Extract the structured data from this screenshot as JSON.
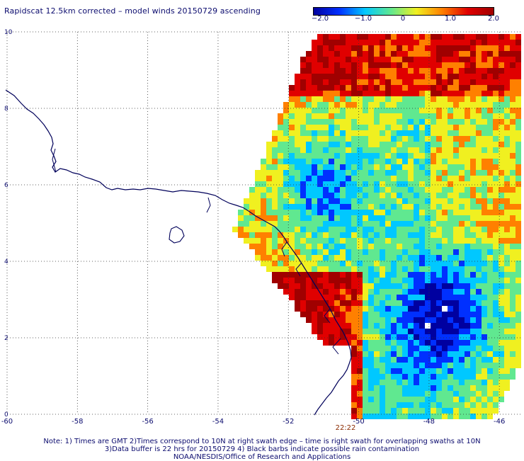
{
  "title": "Rapidscat 12.5km corrected – model winds 20150729 ascending",
  "colorbar": {
    "labels": [
      "−2.0",
      "−1.0",
      "0",
      "1.0",
      "2.0"
    ],
    "values": [
      -2.0,
      -1.0,
      0.0,
      1.0,
      2.0
    ],
    "stops": [
      "#0000a0",
      "#0030ff",
      "#00c8ff",
      "#60e890",
      "#f0f020",
      "#ff8000",
      "#e00000",
      "#a00000"
    ]
  },
  "map": {
    "lon_range": [
      -60,
      -45.4
    ],
    "lat_range": [
      0,
      10
    ],
    "x_ticks": [
      "-60",
      "-58",
      "-56",
      "-54",
      "-52",
      "-50",
      "-48",
      "-46"
    ],
    "x_tick_values": [
      -60,
      -58,
      -56,
      -54,
      -52,
      -50,
      -48,
      -46
    ],
    "y_ticks": [
      "0",
      "2",
      "4",
      "6",
      "8",
      "10"
    ],
    "y_tick_values": [
      0,
      2,
      4,
      6,
      8,
      10
    ],
    "swath_time": "22:22",
    "coast_color": "#00005a",
    "grid": "dotted"
  },
  "footer": {
    "line1": "Note: 1) Times are GMT 2)Times correspond to 10N at right swath edge – time is right swath for overlapping swaths at 10N",
    "line2": "3)Data buffer is 22 hrs for 20150729 4) Black barbs indicate possible rain contamination",
    "line3": "NOAA/NESDIS/Office of Research and Applications"
  }
}
